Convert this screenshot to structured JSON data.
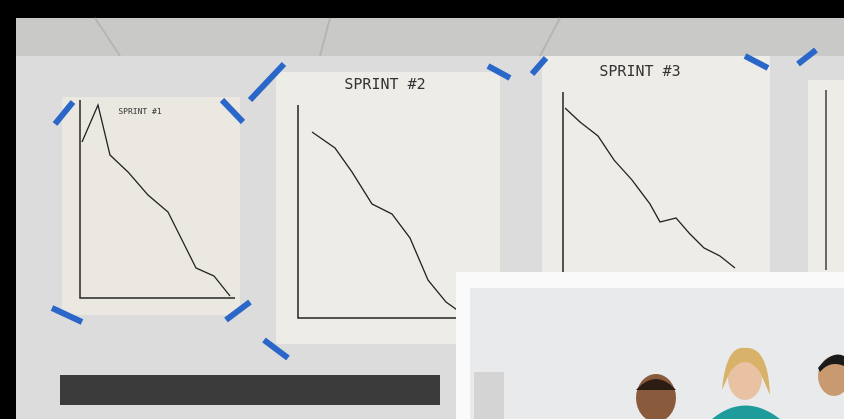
{
  "sheets": [
    {
      "title": "SPRINT #1"
    },
    {
      "title": "SPRINT #2"
    },
    {
      "title": "SPRINT #3"
    }
  ]
}
